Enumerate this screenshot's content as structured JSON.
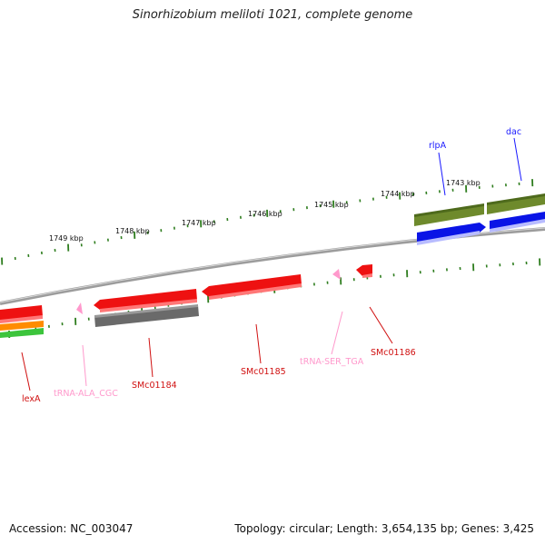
{
  "title": "Sinorhizobium meliloti 1021, complete genome",
  "footer": {
    "accession": "Accession: NC_003047",
    "topology": "Topology: circular; Length: 3,654,135 bp; Genes: 3,425"
  },
  "ticks": [
    "1749 kbp",
    "1748 kbp",
    "1747 kbp",
    "1746 kbp",
    "1745 kbp",
    "1744 kbp",
    "1743 kbp"
  ],
  "genes": {
    "rlpA": "rlpA",
    "dac": "dac",
    "lexA": "lexA",
    "trna_ala": "tRNA-ALA_CGC",
    "smc01184": "SMc01184",
    "smc01185": "SMc01185",
    "trna_ser": "tRNA-SER_TGA",
    "smc01186": "SMc01186"
  },
  "colors": {
    "backbone": "#8a8a8a",
    "tick": "#2e7d1e",
    "red": "#ee1111",
    "gray": "#6a6a6a",
    "olive": "#6e8a2c",
    "blue": "#0a14e6",
    "orange": "#ff8c00",
    "green": "#3cc43c",
    "pink": "#ff99cc"
  }
}
